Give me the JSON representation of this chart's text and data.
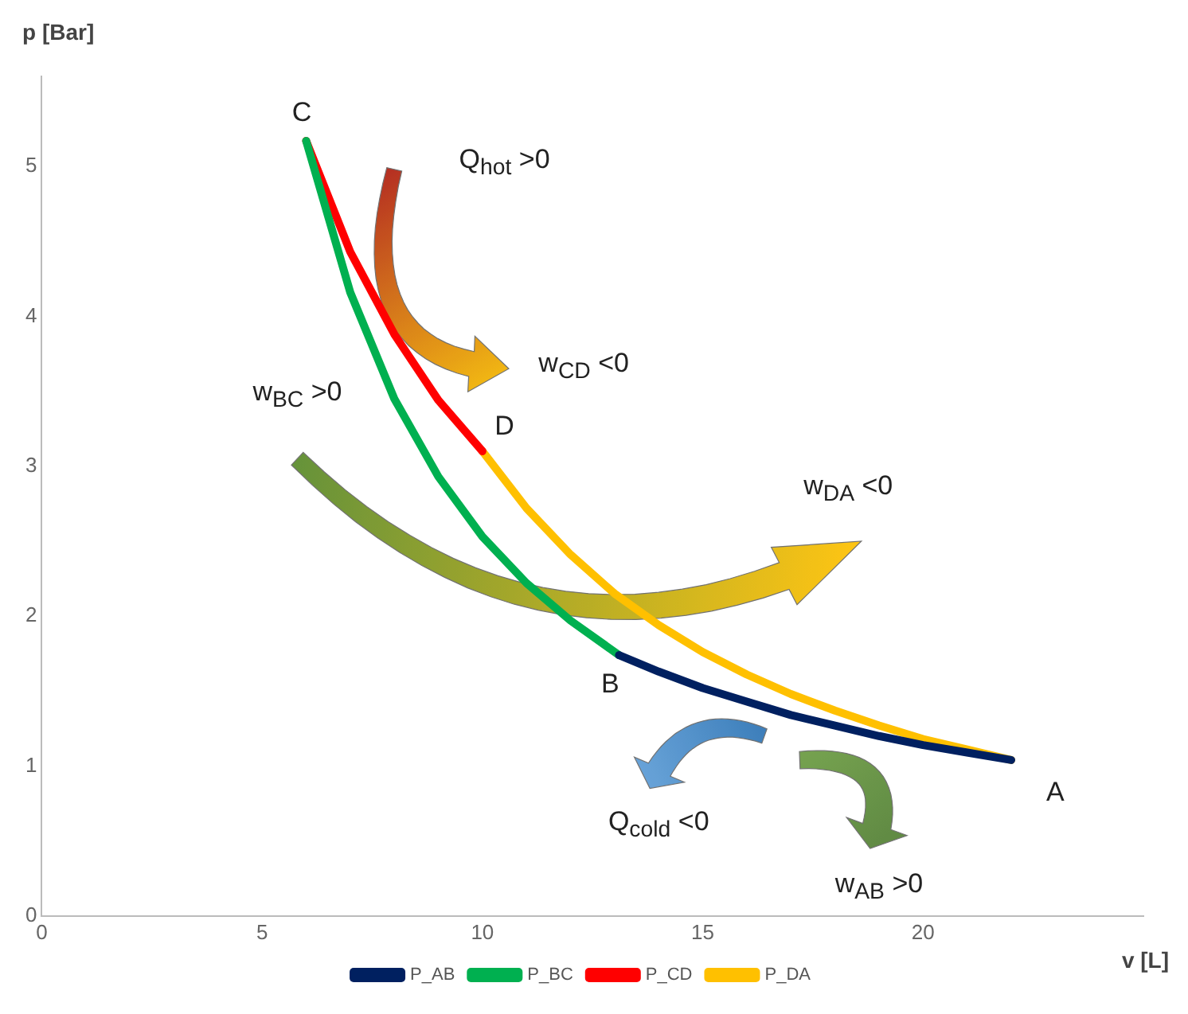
{
  "chart_data": {
    "type": "line",
    "xlabel": "v [L]",
    "ylabel": "p  [Bar]",
    "xlim": [
      0,
      25
    ],
    "xticks": [
      0,
      5,
      10,
      15,
      20
    ],
    "ylim": [
      0,
      5.6
    ],
    "yticks": [
      0,
      1,
      2,
      3,
      4,
      5
    ],
    "grid": false,
    "legend": "bottom",
    "marker": "none",
    "line_style": "solid",
    "series": [
      {
        "name": "P_AB",
        "color": "#002060",
        "x": [
          13.1,
          14,
          15,
          16,
          17,
          18,
          19,
          20,
          21,
          22
        ],
        "values": [
          1.74,
          1.63,
          1.52,
          1.43,
          1.34,
          1.27,
          1.2,
          1.14,
          1.09,
          1.04
        ]
      },
      {
        "name": "P_BC",
        "color": "#00b050",
        "x": [
          6,
          7,
          8,
          9,
          10,
          11,
          12,
          13.1
        ],
        "values": [
          5.17,
          4.16,
          3.45,
          2.93,
          2.53,
          2.22,
          1.97,
          1.74
        ]
      },
      {
        "name": "P_CD",
        "color": "#ff0000",
        "x": [
          6,
          7,
          8,
          9,
          10
        ],
        "values": [
          5.17,
          4.43,
          3.88,
          3.44,
          3.1
        ]
      },
      {
        "name": "P_DA",
        "color": "#ffc000",
        "x": [
          10,
          11,
          12,
          13,
          14,
          15,
          16,
          17,
          18,
          19,
          20,
          21,
          22
        ],
        "values": [
          3.1,
          2.72,
          2.41,
          2.15,
          1.94,
          1.76,
          1.61,
          1.48,
          1.37,
          1.27,
          1.18,
          1.11,
          1.04
        ]
      }
    ],
    "annotations": [
      "C",
      "D",
      "B",
      "A",
      "Q$_{hot}$ >0",
      "w$_{CD}$ <0",
      "w$_{BC}$ >0",
      "w$_{DA}$ <0",
      "Q$_{cold}$ <0",
      "w$_{AB}$ >0"
    ]
  }
}
